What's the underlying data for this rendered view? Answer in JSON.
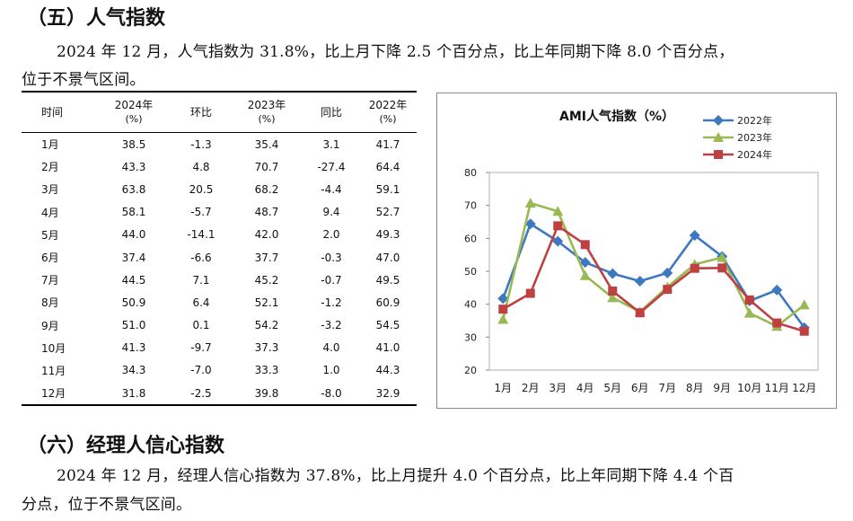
{
  "section5": {
    "heading": "（五）人气指数",
    "para_line1": "2024 年 12 月，人气指数为 31.8%，比上月下降 2.5 个百分点，比上年同期下降 8.0 个百分点，",
    "para_line2": "位于不景气区间。"
  },
  "table": {
    "headers": [
      {
        "top": "时间",
        "bottom": ""
      },
      {
        "top": "2024年",
        "bottom": "(%)"
      },
      {
        "top": "环比",
        "bottom": ""
      },
      {
        "top": "2023年",
        "bottom": "(%)"
      },
      {
        "top": "同比",
        "bottom": ""
      },
      {
        "top": "2022年",
        "bottom": "(%)"
      }
    ],
    "rows": [
      [
        "1月",
        "38.5",
        "-1.3",
        "35.4",
        "3.1",
        "41.7"
      ],
      [
        "2月",
        "43.3",
        "4.8",
        "70.7",
        "-27.4",
        "64.4"
      ],
      [
        "3月",
        "63.8",
        "20.5",
        "68.2",
        "-4.4",
        "59.1"
      ],
      [
        "4月",
        "58.1",
        "-5.7",
        "48.7",
        "9.4",
        "52.7"
      ],
      [
        "5月",
        "44.0",
        "-14.1",
        "42.0",
        "2.0",
        "49.3"
      ],
      [
        "6月",
        "37.4",
        "-6.6",
        "37.7",
        "-0.3",
        "47.0"
      ],
      [
        "7月",
        "44.5",
        "7.1",
        "45.2",
        "-0.7",
        "49.5"
      ],
      [
        "8月",
        "50.9",
        "6.4",
        "52.1",
        "-1.2",
        "60.9"
      ],
      [
        "9月",
        "51.0",
        "0.1",
        "54.2",
        "-3.2",
        "54.5"
      ],
      [
        "10月",
        "41.3",
        "-9.7",
        "37.3",
        "4.0",
        "41.0"
      ],
      [
        "11月",
        "34.3",
        "-7.0",
        "33.3",
        "1.0",
        "44.3"
      ],
      [
        "12月",
        "31.8",
        "-2.5",
        "39.8",
        "-8.0",
        "32.9"
      ]
    ]
  },
  "chart_data": {
    "type": "line",
    "title": "AMI人气指数（%）",
    "categories": [
      "1月",
      "2月",
      "3月",
      "4月",
      "5月",
      "6月",
      "7月",
      "8月",
      "9月",
      "10月",
      "11月",
      "12月"
    ],
    "ylim": [
      20,
      80
    ],
    "yticks": [
      20,
      30,
      40,
      50,
      60,
      70,
      80
    ],
    "grid": false,
    "legend_position": "top-right",
    "series": [
      {
        "name": "2022年",
        "color": "#3d78c1",
        "marker": "diamond",
        "values": [
          41.7,
          64.4,
          59.1,
          52.7,
          49.3,
          47.0,
          49.5,
          60.9,
          54.5,
          41.0,
          44.3,
          32.9
        ]
      },
      {
        "name": "2023年",
        "color": "#98b954",
        "marker": "triangle",
        "values": [
          35.4,
          70.7,
          68.2,
          48.7,
          42.0,
          37.7,
          45.2,
          52.1,
          54.2,
          37.3,
          33.3,
          39.8
        ]
      },
      {
        "name": "2024年",
        "color": "#bf4040",
        "marker": "square",
        "values": [
          38.5,
          43.3,
          63.8,
          58.1,
          44.0,
          37.4,
          44.5,
          50.9,
          51.0,
          41.3,
          34.3,
          31.8
        ]
      }
    ]
  },
  "section6": {
    "heading": "（六）经理人信心指数",
    "para_line1": "2024 年 12 月，经理人信心指数为 37.8%，比上月提升 4.0 个百分点，比上年同期下降 4.4 个百",
    "para_line2": "分点，位于不景气区间。"
  }
}
